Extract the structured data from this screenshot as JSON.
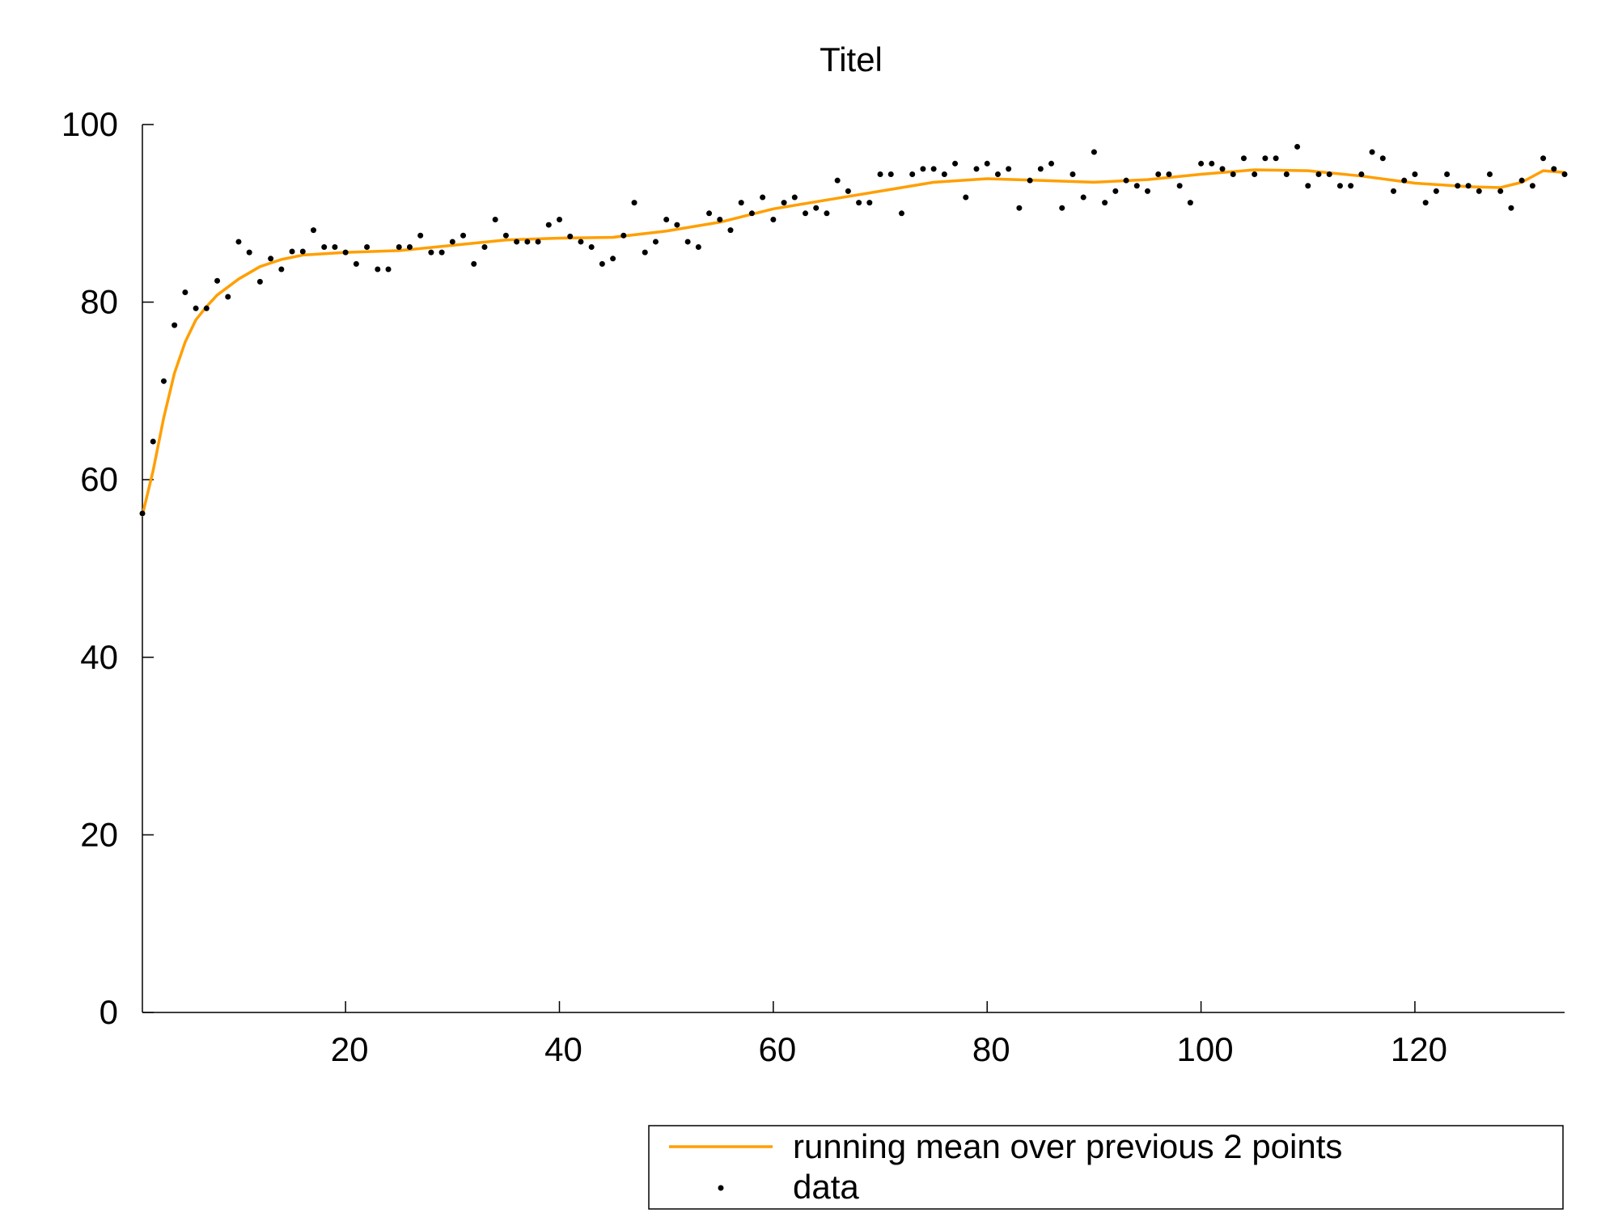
{
  "chart_data": {
    "type": "scatter",
    "title": "Titel",
    "xlabel": "",
    "ylabel": "",
    "xlim": [
      1,
      134
    ],
    "ylim": [
      0,
      100
    ],
    "x_ticks": [
      20,
      40,
      60,
      80,
      100,
      120
    ],
    "y_ticks": [
      0,
      20,
      40,
      60,
      80,
      100
    ],
    "grid": false,
    "legend_position": "bottom-right below plot",
    "colors": {
      "smooth": "#ff9f00",
      "data": "#000000"
    },
    "series": [
      {
        "name": "running mean over previous 2 points",
        "kind": "line",
        "x": [
          1,
          2,
          3,
          4,
          5,
          6,
          7,
          8,
          10,
          12,
          14,
          16,
          20,
          25,
          30,
          35,
          40,
          45,
          50,
          55,
          60,
          65,
          70,
          75,
          80,
          85,
          90,
          95,
          100,
          105,
          110,
          115,
          120,
          125,
          128,
          130,
          132,
          134
        ],
        "y": [
          56,
          61,
          67,
          72,
          75.5,
          78,
          79.5,
          80.8,
          82.6,
          84.0,
          84.8,
          85.3,
          85.6,
          85.8,
          86.4,
          87.0,
          87.2,
          87.3,
          88.0,
          89.0,
          90.5,
          91.5,
          92.5,
          93.5,
          93.9,
          93.7,
          93.5,
          93.8,
          94.4,
          94.9,
          94.8,
          94.2,
          93.4,
          93.0,
          92.9,
          93.5,
          94.8,
          94.6
        ]
      },
      {
        "name": "data",
        "kind": "points",
        "x": [
          1,
          2,
          3,
          4,
          5,
          6,
          7,
          8,
          9,
          10,
          11,
          12,
          13,
          14,
          15,
          16,
          17,
          18,
          19,
          20,
          21,
          22,
          23,
          24,
          25,
          26,
          27,
          28,
          29,
          30,
          31,
          32,
          33,
          34,
          35,
          36,
          37,
          38,
          39,
          40,
          41,
          42,
          43,
          44,
          45,
          46,
          47,
          48,
          49,
          50,
          51,
          52,
          53,
          54,
          55,
          56,
          57,
          58,
          59,
          60,
          61,
          62,
          63,
          64,
          65,
          66,
          67,
          68,
          69,
          70,
          71,
          72,
          73,
          74,
          75,
          76,
          77,
          78,
          79,
          80,
          81,
          82,
          83,
          84,
          85,
          86,
          87,
          88,
          89,
          90,
          91,
          92,
          93,
          94,
          95,
          96,
          97,
          98,
          99,
          100,
          101,
          102,
          103,
          104,
          105,
          106,
          107,
          108,
          109,
          110,
          111,
          112,
          113,
          114,
          115,
          116,
          117,
          118,
          119,
          120,
          121,
          122,
          123,
          124,
          125,
          126,
          127,
          128,
          129,
          130,
          131,
          132,
          133,
          134
        ],
        "y": [
          56.2,
          64.3,
          71.1,
          77.4,
          81.1,
          79.3,
          79.3,
          82.4,
          80.6,
          86.8,
          85.6,
          82.3,
          84.9,
          83.7,
          85.7,
          85.7,
          88.1,
          86.2,
          86.2,
          85.6,
          84.3,
          86.2,
          83.7,
          83.7,
          86.2,
          86.2,
          87.5,
          85.6,
          85.6,
          86.8,
          87.5,
          84.3,
          86.2,
          89.3,
          87.5,
          86.8,
          86.8,
          86.8,
          88.7,
          89.3,
          87.4,
          86.8,
          86.2,
          84.3,
          84.9,
          87.5,
          91.2,
          85.6,
          86.8,
          89.3,
          88.7,
          86.8,
          86.2,
          90.0,
          89.3,
          88.1,
          91.2,
          90.0,
          91.8,
          89.3,
          91.2,
          91.8,
          90.0,
          90.6,
          90.0,
          93.7,
          92.5,
          91.2,
          91.2,
          94.4,
          94.4,
          90.0,
          94.4,
          95.0,
          95.0,
          94.4,
          95.6,
          91.8,
          95.0,
          95.6,
          94.4,
          95.0,
          90.6,
          93.7,
          95.0,
          95.6,
          90.6,
          94.4,
          91.8,
          96.9,
          91.2,
          92.5,
          93.7,
          93.1,
          92.5,
          94.4,
          94.4,
          93.1,
          91.2,
          95.6,
          95.6,
          95.0,
          94.4,
          96.2,
          94.4,
          96.2,
          96.2,
          94.4,
          97.5,
          93.1,
          94.4,
          94.4,
          93.1,
          93.1,
          94.4,
          96.9,
          96.2,
          92.5,
          93.7,
          94.4,
          91.2,
          92.5,
          94.4,
          93.1,
          93.1,
          92.5,
          94.4,
          92.5,
          90.6,
          93.7,
          93.1,
          96.2,
          95.0,
          94.4
        ]
      }
    ]
  }
}
